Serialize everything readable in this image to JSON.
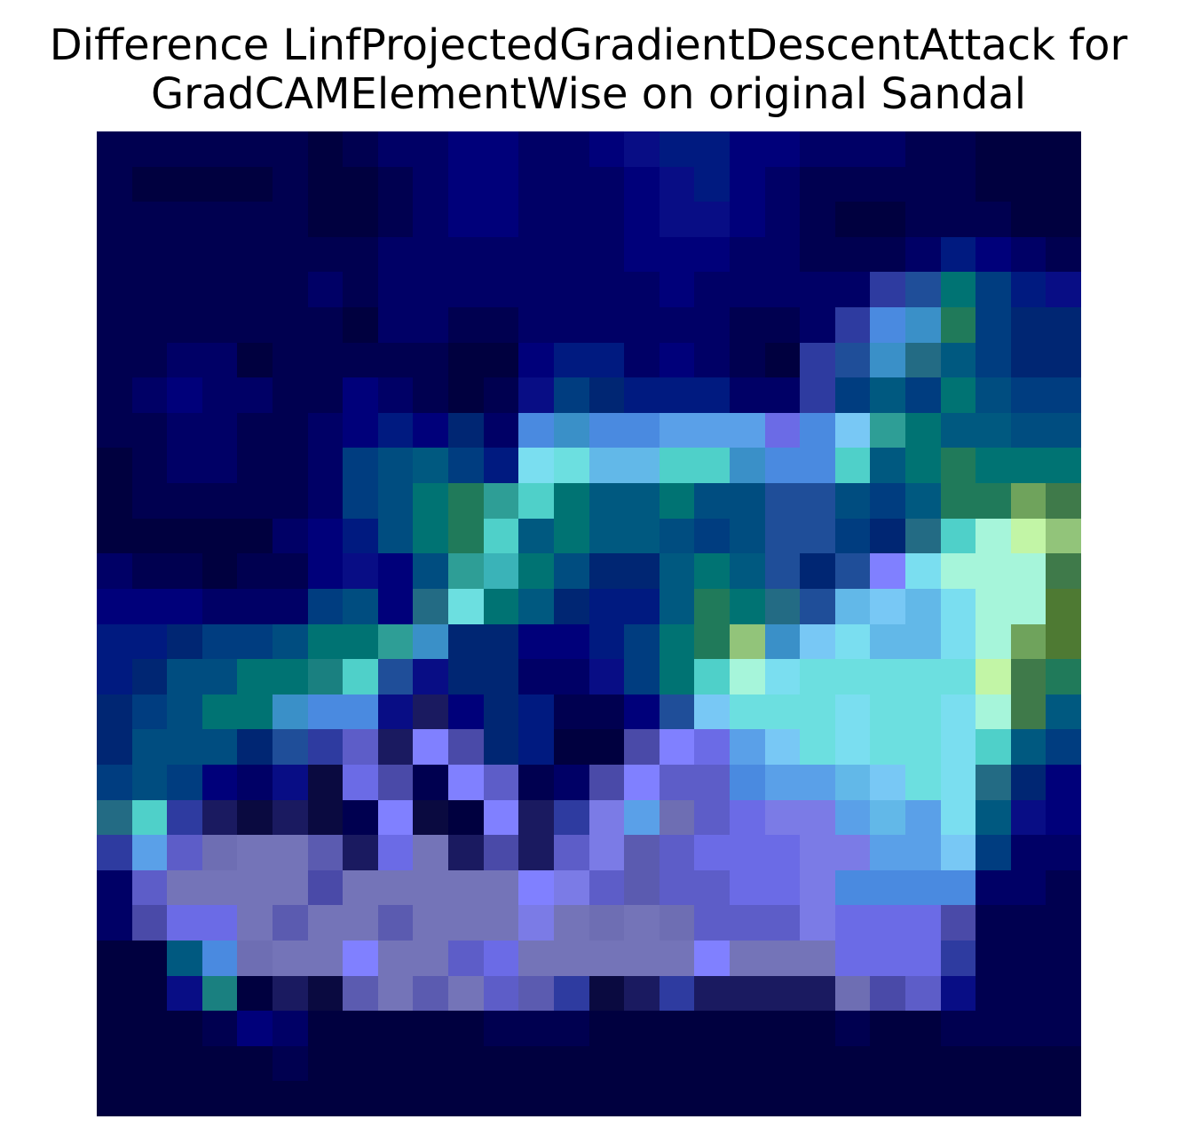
{
  "chart_data": {
    "type": "heatmap",
    "title_lines": [
      "Difference LinfProjectedGradientDescentAttack for",
      "GradCAMElementWise on original Sandal"
    ],
    "xlabel": "",
    "ylabel": "",
    "axes": "off",
    "grid": false,
    "legend": "none",
    "rows": 28,
    "cols": 28,
    "palette": [
      "#00003f",
      "#000050",
      "#000066",
      "#00007a",
      "#080d85",
      "#001a80",
      "#002673",
      "#003d80",
      "#004d80",
      "#005980",
      "#007373",
      "#1a8080",
      "#207a5a",
      "#2e9e96",
      "#3ab3b8",
      "#4fd0c9",
      "#6cdfe0",
      "#7adef0",
      "#a6f5da",
      "#c2f5a6",
      "#92c47a",
      "#6fa35c",
      "#4e7a33",
      "#3f7a4a",
      "#236b84",
      "#1f4e99",
      "#2e3ba0",
      "#4a4aa8",
      "#5d5dc8",
      "#6b6be6",
      "#7b7be6",
      "#8080ff",
      "#6e6eb3",
      "#7474b8",
      "#5b5bb0",
      "#1a1a60",
      "#0a0a40",
      "#4a8ae0",
      "#5aa0e8",
      "#78c8f5",
      "#62b8e8",
      "#3a90c8"
    ],
    "grid_values": [
      [
        1,
        1,
        1,
        1,
        1,
        1,
        0,
        1,
        2,
        2,
        3,
        3,
        2,
        2,
        3,
        4,
        5,
        5,
        3,
        3,
        2,
        2,
        2,
        1,
        1,
        0,
        0,
        0
      ],
      [
        1,
        0,
        0,
        0,
        0,
        1,
        0,
        0,
        1,
        2,
        3,
        3,
        2,
        2,
        2,
        3,
        4,
        5,
        3,
        2,
        1,
        1,
        1,
        1,
        1,
        0,
        0,
        0
      ],
      [
        1,
        1,
        1,
        1,
        1,
        1,
        0,
        0,
        1,
        2,
        3,
        3,
        2,
        2,
        2,
        3,
        4,
        4,
        3,
        2,
        1,
        0,
        0,
        1,
        1,
        1,
        0,
        0
      ],
      [
        1,
        1,
        1,
        1,
        1,
        1,
        1,
        1,
        2,
        2,
        2,
        2,
        2,
        2,
        2,
        3,
        3,
        3,
        2,
        2,
        1,
        1,
        1,
        2,
        5,
        3,
        2,
        1
      ],
      [
        1,
        1,
        1,
        1,
        1,
        1,
        2,
        1,
        2,
        2,
        2,
        2,
        2,
        2,
        2,
        2,
        3,
        2,
        2,
        2,
        2,
        2,
        26,
        25,
        10,
        7,
        5,
        4
      ],
      [
        1,
        1,
        1,
        1,
        1,
        1,
        1,
        0,
        2,
        2,
        1,
        1,
        2,
        2,
        2,
        2,
        2,
        2,
        1,
        1,
        2,
        26,
        37,
        41,
        12,
        7,
        6,
        6
      ],
      [
        1,
        1,
        2,
        2,
        0,
        1,
        1,
        1,
        1,
        1,
        0,
        0,
        3,
        5,
        5,
        2,
        3,
        2,
        1,
        0,
        26,
        25,
        41,
        24,
        9,
        7,
        6,
        6
      ],
      [
        1,
        2,
        3,
        2,
        2,
        1,
        1,
        3,
        2,
        1,
        0,
        1,
        4,
        7,
        6,
        5,
        5,
        5,
        2,
        2,
        26,
        7,
        9,
        7,
        10,
        8,
        7,
        7
      ],
      [
        1,
        1,
        2,
        2,
        1,
        1,
        2,
        3,
        5,
        3,
        6,
        2,
        37,
        41,
        37,
        37,
        38,
        38,
        38,
        29,
        37,
        39,
        13,
        10,
        9,
        9,
        8,
        8
      ],
      [
        0,
        1,
        2,
        2,
        1,
        1,
        2,
        7,
        8,
        9,
        7,
        5,
        17,
        16,
        40,
        40,
        15,
        15,
        41,
        37,
        37,
        15,
        9,
        10,
        12,
        10,
        10,
        10
      ],
      [
        0,
        1,
        1,
        1,
        1,
        1,
        2,
        7,
        8,
        10,
        12,
        13,
        15,
        10,
        9,
        9,
        10,
        8,
        8,
        25,
        25,
        8,
        7,
        9,
        12,
        12,
        21,
        23
      ],
      [
        0,
        0,
        0,
        0,
        0,
        2,
        3,
        5,
        8,
        10,
        12,
        15,
        9,
        10,
        9,
        9,
        8,
        7,
        8,
        25,
        25,
        7,
        6,
        24,
        15,
        18,
        19,
        20
      ],
      [
        2,
        1,
        1,
        0,
        1,
        1,
        3,
        4,
        3,
        8,
        13,
        14,
        10,
        8,
        6,
        6,
        9,
        10,
        9,
        25,
        6,
        25,
        31,
        17,
        18,
        18,
        18,
        23
      ],
      [
        3,
        3,
        3,
        2,
        2,
        2,
        7,
        8,
        3,
        24,
        16,
        10,
        9,
        6,
        5,
        5,
        9,
        12,
        10,
        24,
        25,
        40,
        39,
        40,
        17,
        18,
        18,
        22
      ],
      [
        5,
        5,
        6,
        7,
        7,
        8,
        10,
        10,
        13,
        41,
        6,
        6,
        3,
        3,
        5,
        7,
        10,
        12,
        20,
        41,
        39,
        17,
        40,
        40,
        17,
        18,
        21,
        22
      ],
      [
        5,
        6,
        8,
        8,
        10,
        10,
        11,
        15,
        25,
        4,
        6,
        6,
        2,
        2,
        4,
        7,
        10,
        15,
        18,
        17,
        16,
        16,
        16,
        16,
        16,
        19,
        23,
        12
      ],
      [
        6,
        7,
        8,
        10,
        10,
        41,
        37,
        37,
        4,
        35,
        3,
        6,
        5,
        1,
        1,
        3,
        25,
        39,
        16,
        16,
        16,
        17,
        16,
        16,
        17,
        18,
        23,
        9
      ],
      [
        6,
        8,
        8,
        8,
        6,
        25,
        26,
        28,
        35,
        31,
        27,
        6,
        5,
        0,
        0,
        27,
        31,
        29,
        38,
        39,
        16,
        17,
        16,
        16,
        17,
        15,
        9,
        7
      ],
      [
        7,
        8,
        7,
        3,
        2,
        4,
        36,
        29,
        27,
        1,
        31,
        28,
        1,
        2,
        27,
        31,
        28,
        28,
        37,
        38,
        38,
        40,
        39,
        16,
        17,
        24,
        6,
        3
      ],
      [
        24,
        15,
        26,
        35,
        36,
        35,
        36,
        1,
        31,
        36,
        0,
        31,
        35,
        26,
        30,
        38,
        32,
        28,
        29,
        30,
        30,
        38,
        40,
        38,
        17,
        9,
        4,
        3
      ],
      [
        26,
        38,
        28,
        32,
        33,
        33,
        34,
        35,
        29,
        33,
        35,
        27,
        35,
        28,
        30,
        34,
        28,
        29,
        29,
        29,
        30,
        30,
        38,
        38,
        39,
        7,
        2,
        2
      ],
      [
        2,
        28,
        33,
        33,
        33,
        33,
        27,
        33,
        33,
        33,
        33,
        33,
        31,
        30,
        28,
        34,
        28,
        28,
        29,
        29,
        30,
        37,
        37,
        37,
        37,
        2,
        2,
        1
      ],
      [
        2,
        27,
        29,
        29,
        33,
        34,
        33,
        33,
        34,
        33,
        33,
        33,
        30,
        33,
        32,
        33,
        32,
        28,
        28,
        28,
        30,
        29,
        29,
        29,
        27,
        1,
        1,
        1
      ],
      [
        0,
        0,
        9,
        37,
        32,
        33,
        33,
        31,
        33,
        33,
        28,
        29,
        33,
        33,
        33,
        33,
        33,
        31,
        33,
        33,
        33,
        29,
        29,
        29,
        26,
        1,
        1,
        1
      ],
      [
        0,
        0,
        4,
        11,
        0,
        35,
        36,
        34,
        33,
        34,
        33,
        28,
        34,
        26,
        36,
        35,
        26,
        35,
        35,
        35,
        35,
        32,
        27,
        28,
        4,
        1,
        1,
        1
      ],
      [
        0,
        0,
        0,
        1,
        3,
        2,
        0,
        0,
        0,
        0,
        0,
        1,
        1,
        1,
        0,
        0,
        0,
        0,
        0,
        0,
        0,
        1,
        0,
        0,
        1,
        1,
        1,
        1
      ],
      [
        0,
        0,
        0,
        0,
        0,
        1,
        0,
        0,
        0,
        0,
        0,
        0,
        0,
        0,
        0,
        0,
        0,
        0,
        0,
        0,
        0,
        0,
        0,
        0,
        0,
        0,
        0,
        0
      ],
      [
        0,
        0,
        0,
        0,
        0,
        0,
        0,
        0,
        0,
        0,
        0,
        0,
        0,
        0,
        0,
        0,
        0,
        0,
        0,
        0,
        0,
        0,
        0,
        0,
        0,
        0,
        0,
        0
      ]
    ]
  }
}
